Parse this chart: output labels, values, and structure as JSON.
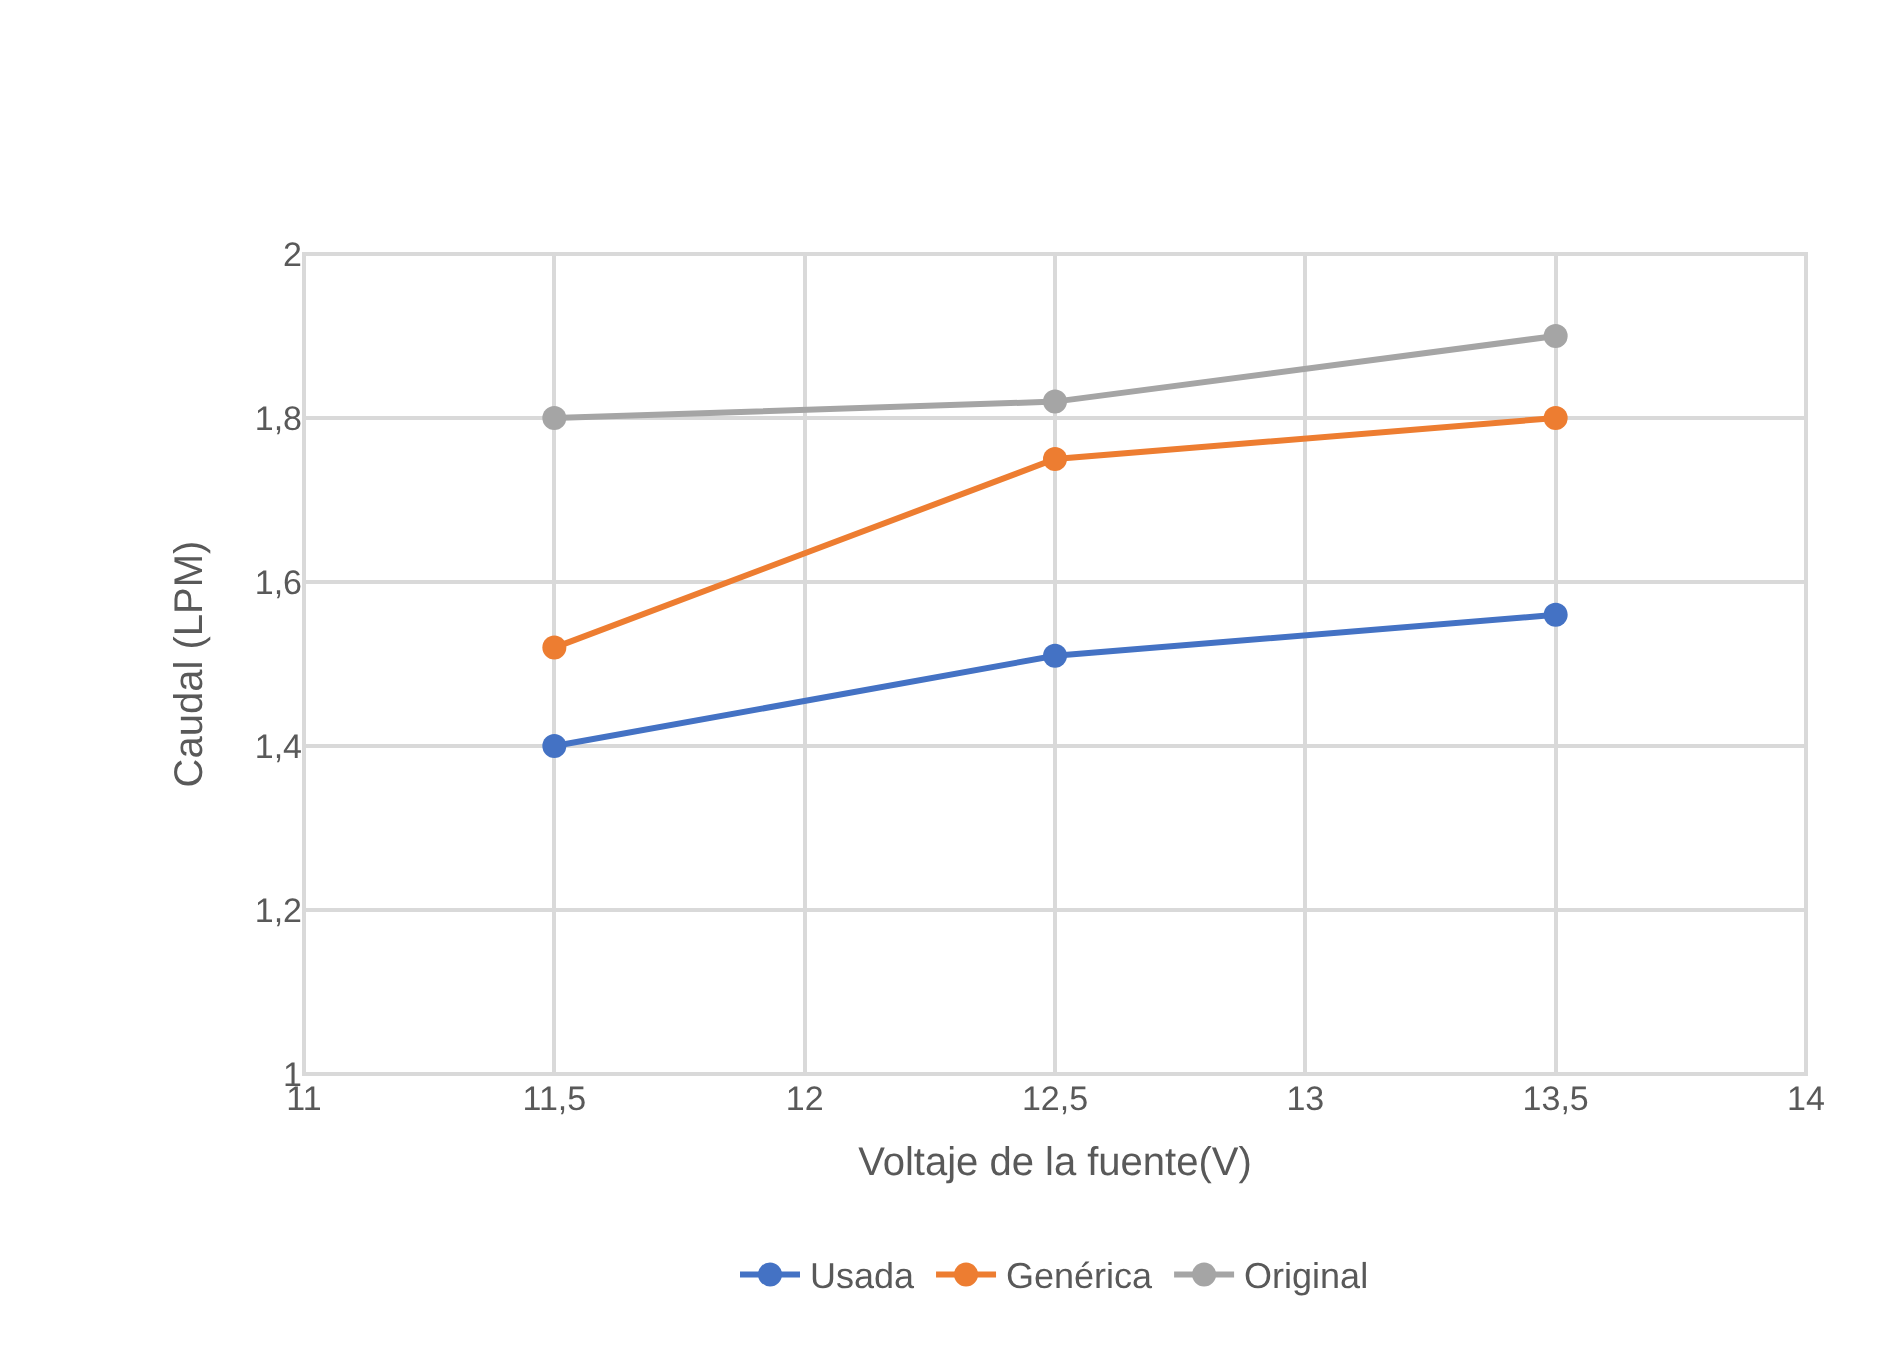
{
  "chart_data": {
    "type": "line",
    "xlabel": "Voltaje de la fuente(V)",
    "ylabel": "Caudal (LPM)",
    "x": [
      11.5,
      12.5,
      13.5
    ],
    "series": [
      {
        "name": "Usada",
        "color": "#4472c4",
        "values": [
          1.4,
          1.51,
          1.56
        ]
      },
      {
        "name": "Genérica",
        "color": "#ed7d31",
        "values": [
          1.52,
          1.75,
          1.8
        ]
      },
      {
        "name": "Original",
        "color": "#a5a5a5",
        "values": [
          1.8,
          1.82,
          1.9
        ]
      }
    ],
    "xlim": [
      11,
      14
    ],
    "xticks": [
      11,
      {
        "value": 11.5,
        "label": "11,5"
      },
      12,
      {
        "value": 12.5,
        "label": "12,5"
      },
      13,
      {
        "value": 13.5,
        "label": "13,5"
      },
      14
    ],
    "ylim": [
      1,
      2
    ],
    "yticks": [
      1,
      {
        "value": 1.2,
        "label": "1,2"
      },
      {
        "value": 1.4,
        "label": "1,4"
      },
      {
        "value": 1.6,
        "label": "1,6"
      },
      {
        "value": 1.8,
        "label": "1,8"
      },
      2
    ],
    "grid": true,
    "legend": "bottom",
    "marker": "circle",
    "line_style": "solid"
  }
}
